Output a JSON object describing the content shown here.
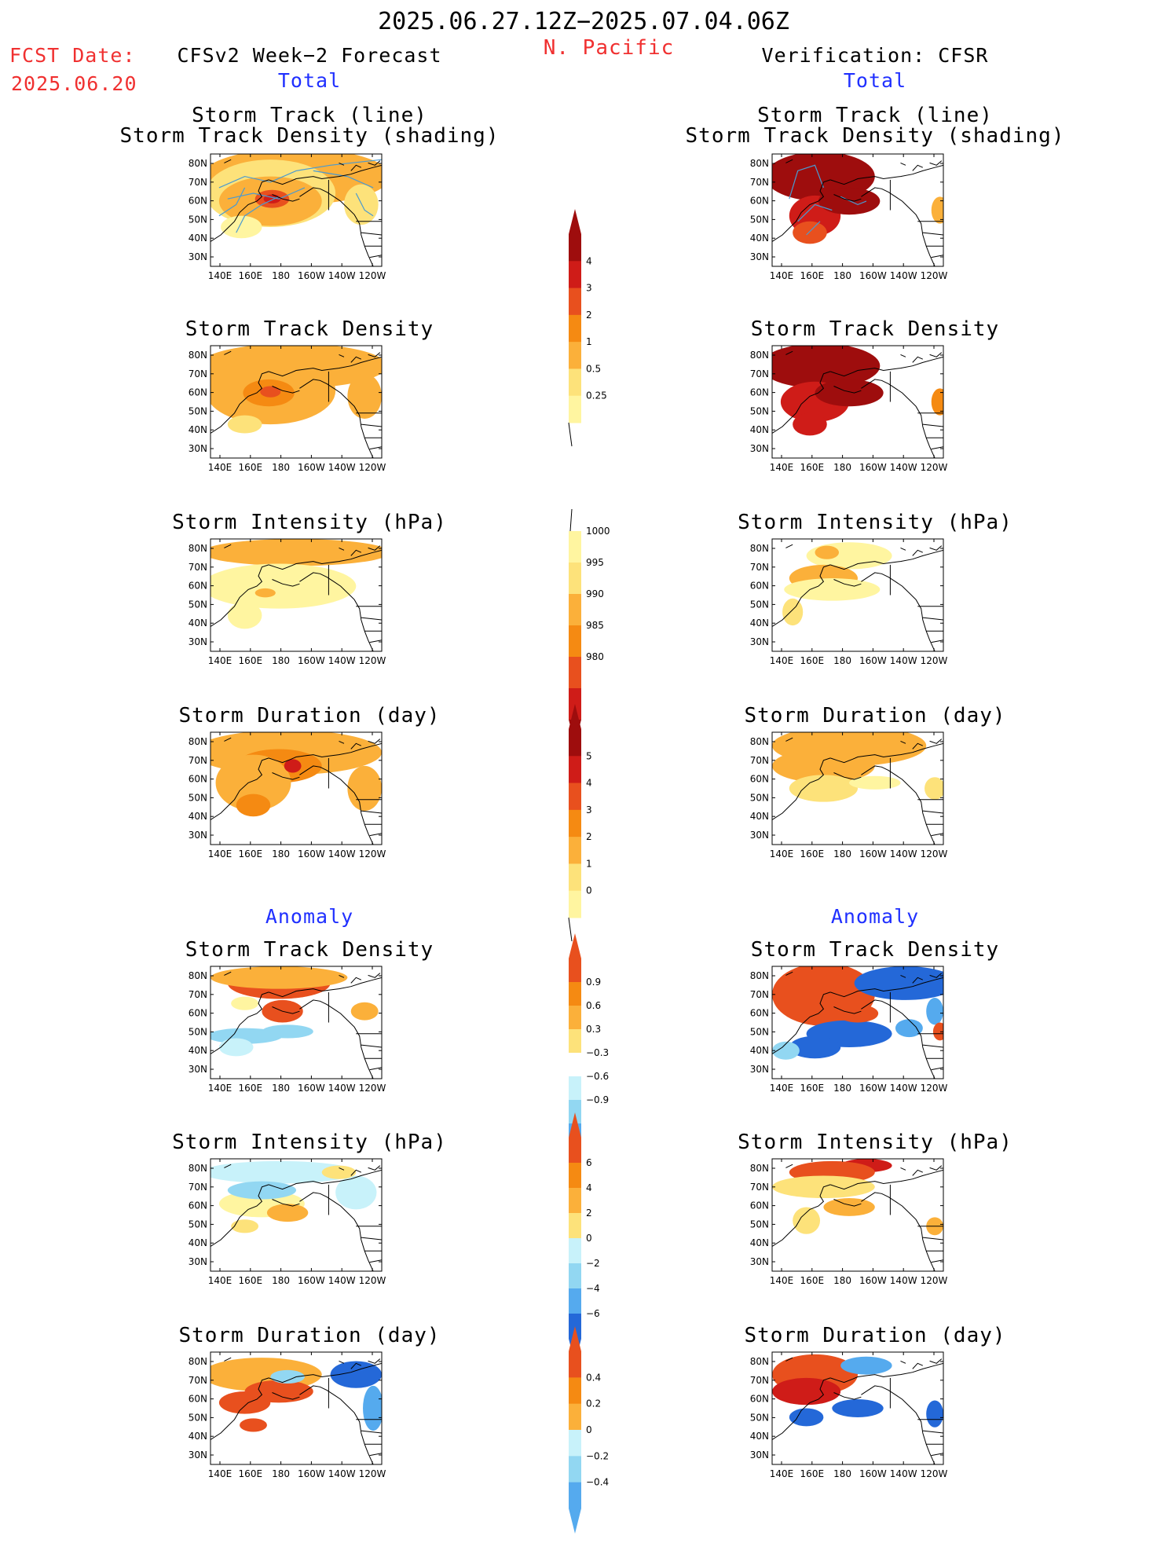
{
  "header": {
    "date_range": "2025.06.27.12Z−2025.07.04.06Z",
    "region": "N. Pacific",
    "fcst_label": "FCST Date:",
    "fcst_date": "2025.06.20",
    "left_title": "CFSv2 Week−2 Forecast",
    "right_title": "Verification: CFSR",
    "total_label": "Total",
    "anomaly_label": "Anomaly"
  },
  "panels": {
    "track_line": "Storm Track (line)",
    "track_shading": "Storm Track Density (shading)",
    "track_density": "Storm Track Density",
    "intensity": "Storm Intensity (hPa)",
    "duration": "Storm Duration (day)"
  },
  "axes": {
    "lat_labels": [
      "80N",
      "70N",
      "60N",
      "50N",
      "40N",
      "30N"
    ],
    "lon_labels": [
      "140E",
      "160E",
      "180",
      "160W",
      "140W",
      "120W"
    ]
  },
  "colorbars": {
    "density_total": [
      "4",
      "3",
      "2",
      "1",
      "0.5",
      "0.25"
    ],
    "intensity_total": [
      "1000",
      "995",
      "990",
      "985",
      "980"
    ],
    "duration_total": [
      "5",
      "4",
      "3",
      "2",
      "1",
      "0"
    ],
    "density_anom": [
      "0.9",
      "0.6",
      "0.3",
      "−0.3",
      "−0.6",
      "−0.9"
    ],
    "intensity_anom": [
      "6",
      "4",
      "2",
      "0",
      "−2",
      "−4",
      "−6"
    ],
    "duration_anom": [
      "0.4",
      "0.2",
      "0",
      "−0.2",
      "−0.4"
    ]
  },
  "colors": {
    "header_red": "#f03030",
    "label_blue": "#2030ff",
    "scale_warm": [
      "#fff5a0",
      "#fde27a",
      "#fbb03a",
      "#f58a12",
      "#e8501e",
      "#cf1c18",
      "#9e0d0d"
    ],
    "scale_cool": [
      "#c8f2fa",
      "#92d7f2",
      "#55aaee",
      "#2468d8"
    ]
  }
}
